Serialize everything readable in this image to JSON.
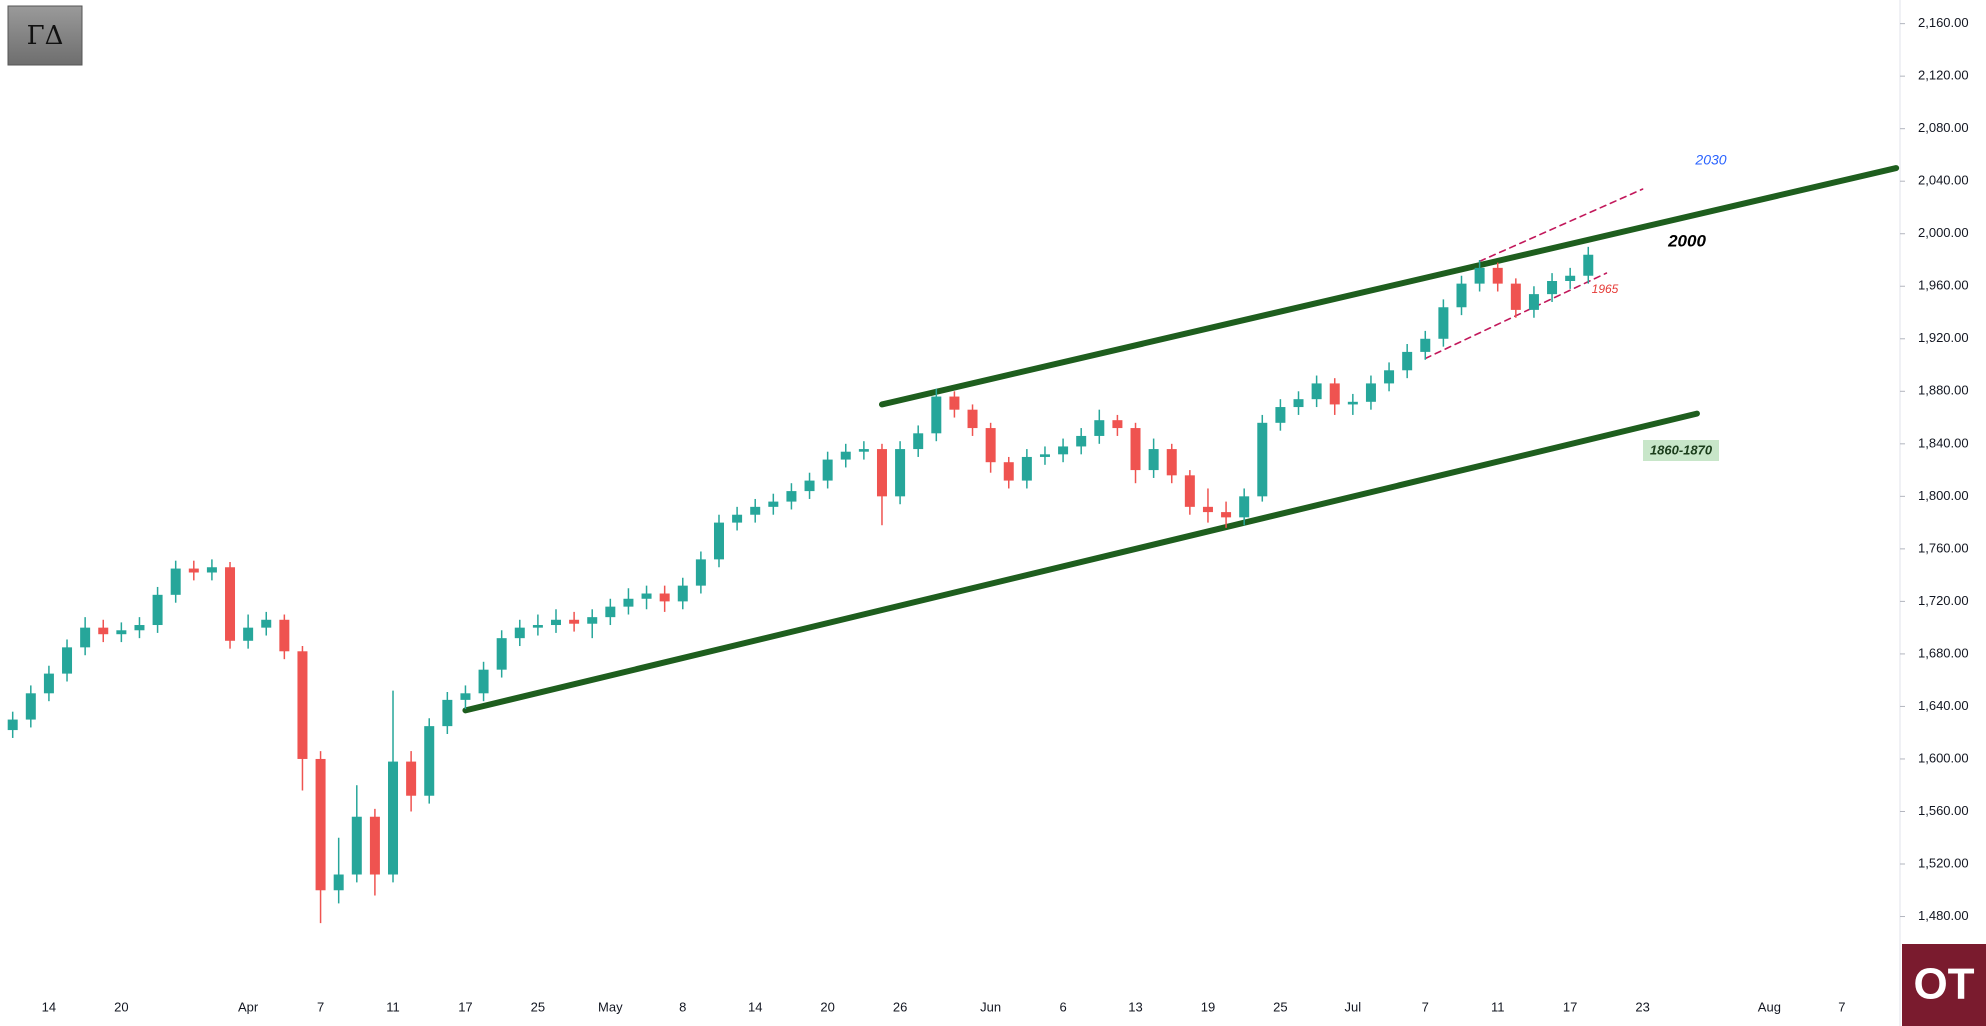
{
  "chart_data": {
    "type": "candlestick",
    "logo": "ΓΔ",
    "brand": "OT",
    "categories": [
      null,
      null,
      "14",
      null,
      null,
      null,
      "20",
      null,
      null,
      null,
      null,
      null,
      null,
      "Apr",
      null,
      null,
      null,
      "7",
      null,
      null,
      null,
      "11",
      null,
      null,
      null,
      "17",
      null,
      null,
      null,
      "25",
      null,
      null,
      null,
      "May",
      null,
      null,
      null,
      "8",
      null,
      null,
      null,
      "14",
      null,
      null,
      null,
      "20",
      null,
      null,
      null,
      "26",
      null,
      null,
      null,
      null,
      "Jun",
      null,
      null,
      null,
      "6",
      null,
      null,
      null,
      "13",
      null,
      null,
      null,
      "19",
      null,
      null,
      null,
      "25",
      null,
      null,
      null,
      "Jul",
      null,
      null,
      null,
      "7",
      null,
      null,
      null,
      "11",
      null,
      null,
      null,
      "17",
      null,
      null,
      null,
      "23",
      null,
      null,
      null,
      null,
      null,
      null,
      "Aug",
      null,
      null,
      null,
      "7",
      null,
      null,
      null
    ],
    "open": [
      1622,
      1630,
      1650,
      1665,
      1685,
      1700,
      1695,
      1698,
      1702,
      1725,
      1745,
      1742,
      1746,
      1690,
      1700,
      1706,
      1682,
      1600,
      1500,
      1512,
      1556,
      1512,
      1598,
      1572,
      1625,
      1645,
      1650,
      1668,
      1692,
      1700,
      1702,
      1706,
      1703,
      1708,
      1716,
      1722,
      1726,
      1720,
      1732,
      1752,
      1780,
      1786,
      1792,
      1796,
      1804,
      1812,
      1828,
      1834,
      1836,
      1800,
      1836,
      1848,
      1876,
      1866,
      1852,
      1826,
      1812,
      1830,
      1832,
      1838,
      1846,
      1858,
      1852,
      1820,
      1836,
      1816,
      1792,
      1788,
      1784,
      1800,
      1856,
      1868,
      1874,
      1886,
      1870,
      1872,
      1886,
      1896,
      1910,
      1920,
      1944,
      1962,
      1974,
      1962,
      1942,
      1954,
      1964,
      1968,
      null,
      null,
      null,
      null,
      null,
      null,
      null,
      null,
      null,
      null,
      null,
      null,
      null,
      null,
      null,
      null,
      null
    ],
    "high": [
      1636,
      1656,
      1671,
      1691,
      1708,
      1706,
      1704,
      1708,
      1731,
      1751,
      1751,
      1752,
      1750,
      1710,
      1712,
      1710,
      1686,
      1606,
      1540,
      1580,
      1562,
      1652,
      1606,
      1631,
      1651,
      1656,
      1674,
      1698,
      1706,
      1710,
      1714,
      1712,
      1714,
      1722,
      1730,
      1732,
      1732,
      1738,
      1758,
      1786,
      1792,
      1798,
      1802,
      1810,
      1818,
      1834,
      1840,
      1842,
      1840,
      1842,
      1854,
      1882,
      1880,
      1870,
      1856,
      1830,
      1836,
      1838,
      1844,
      1852,
      1866,
      1862,
      1856,
      1844,
      1840,
      1820,
      1806,
      1796,
      1806,
      1862,
      1874,
      1880,
      1892,
      1890,
      1878,
      1892,
      1902,
      1916,
      1926,
      1950,
      1968,
      1980,
      1978,
      1966,
      1960,
      1970,
      1974,
      1990,
      null,
      null,
      null,
      null,
      null,
      null,
      null,
      null,
      null,
      null,
      null,
      null,
      null,
      null,
      null,
      null,
      null
    ],
    "low": [
      1616,
      1624,
      1644,
      1659,
      1679,
      1689,
      1689,
      1692,
      1696,
      1719,
      1736,
      1736,
      1684,
      1684,
      1694,
      1676,
      1576,
      1475,
      1490,
      1506,
      1496,
      1506,
      1560,
      1566,
      1619,
      1638,
      1644,
      1662,
      1686,
      1694,
      1696,
      1697,
      1692,
      1702,
      1710,
      1714,
      1712,
      1714,
      1726,
      1746,
      1774,
      1780,
      1786,
      1790,
      1798,
      1806,
      1822,
      1828,
      1778,
      1794,
      1830,
      1842,
      1860,
      1846,
      1818,
      1806,
      1806,
      1824,
      1826,
      1832,
      1840,
      1846,
      1810,
      1814,
      1810,
      1786,
      1780,
      1776,
      1778,
      1796,
      1850,
      1862,
      1868,
      1862,
      1862,
      1866,
      1880,
      1890,
      1904,
      1914,
      1938,
      1956,
      1956,
      1936,
      1936,
      1948,
      1958,
      1962,
      null,
      null,
      null,
      null,
      null,
      null,
      null,
      null,
      null,
      null,
      null,
      null,
      null,
      null,
      null,
      null,
      null
    ],
    "close": [
      1630,
      1650,
      1665,
      1685,
      1700,
      1695,
      1698,
      1702,
      1725,
      1745,
      1742,
      1746,
      1690,
      1700,
      1706,
      1682,
      1600,
      1500,
      1512,
      1556,
      1512,
      1598,
      1572,
      1625,
      1645,
      1650,
      1668,
      1692,
      1700,
      1702,
      1706,
      1703,
      1708,
      1716,
      1722,
      1726,
      1720,
      1732,
      1752,
      1780,
      1786,
      1792,
      1796,
      1804,
      1812,
      1828,
      1834,
      1836,
      1800,
      1836,
      1848,
      1876,
      1866,
      1852,
      1826,
      1812,
      1830,
      1832,
      1838,
      1846,
      1858,
      1852,
      1820,
      1836,
      1816,
      1792,
      1788,
      1784,
      1800,
      1856,
      1868,
      1874,
      1886,
      1870,
      1872,
      1886,
      1896,
      1910,
      1920,
      1944,
      1962,
      1974,
      1962,
      1942,
      1954,
      1964,
      1968,
      1984,
      null,
      null,
      null,
      null,
      null,
      null,
      null,
      null,
      null,
      null,
      null,
      null,
      null,
      null,
      null,
      null,
      null
    ],
    "up_color": "#26a69a",
    "down_color": "#ef5350",
    "ylim": [
      1421,
      2178
    ],
    "yticks": [
      {
        "value": 1480,
        "label": "1,480.00"
      },
      {
        "value": 1520,
        "label": "1,520.00"
      },
      {
        "value": 1560,
        "label": "1,560.00"
      },
      {
        "value": 1600,
        "label": "1,600.00"
      },
      {
        "value": 1640,
        "label": "1,640.00"
      },
      {
        "value": 1680,
        "label": "1,680.00"
      },
      {
        "value": 1720,
        "label": "1,720.00"
      },
      {
        "value": 1760,
        "label": "1,760.00"
      },
      {
        "value": 1800,
        "label": "1,800.00"
      },
      {
        "value": 1840,
        "label": "1,840.00"
      },
      {
        "value": 1880,
        "label": "1,880.00"
      },
      {
        "value": 1920,
        "label": "1,920.00"
      },
      {
        "value": 1960,
        "label": "1,960.00"
      },
      {
        "value": 2000,
        "label": "2,000.00"
      },
      {
        "value": 2040,
        "label": "2,040.00"
      },
      {
        "value": 2080,
        "label": "2,080.00"
      },
      {
        "value": 2120,
        "label": "2,120.00"
      },
      {
        "value": 2160,
        "label": "2,160.00"
      }
    ],
    "lines": [
      {
        "x": [
          48,
          104
        ],
        "y": [
          1870,
          2050
        ],
        "color": "#1e5e1e",
        "dashed": false
      },
      {
        "x": [
          25,
          93
        ],
        "y": [
          1637,
          1863
        ],
        "color": "#1e5e1e",
        "dashed": false
      },
      {
        "x": [
          81,
          90
        ],
        "y": [
          1979,
          2034
        ],
        "color": "#c2185b",
        "dashed": true
      },
      {
        "x": [
          78,
          88
        ],
        "y": [
          1905,
          1970
        ],
        "color": "#c2185b",
        "dashed": true
      }
    ],
    "annotations": [
      {
        "text": "2030",
        "color": "#2962ff"
      },
      {
        "text": "2000",
        "color": "#000000"
      },
      {
        "text": "1965",
        "color": "#e53935"
      },
      {
        "text": "1860-1870",
        "color": "#1b3d1b"
      }
    ]
  }
}
